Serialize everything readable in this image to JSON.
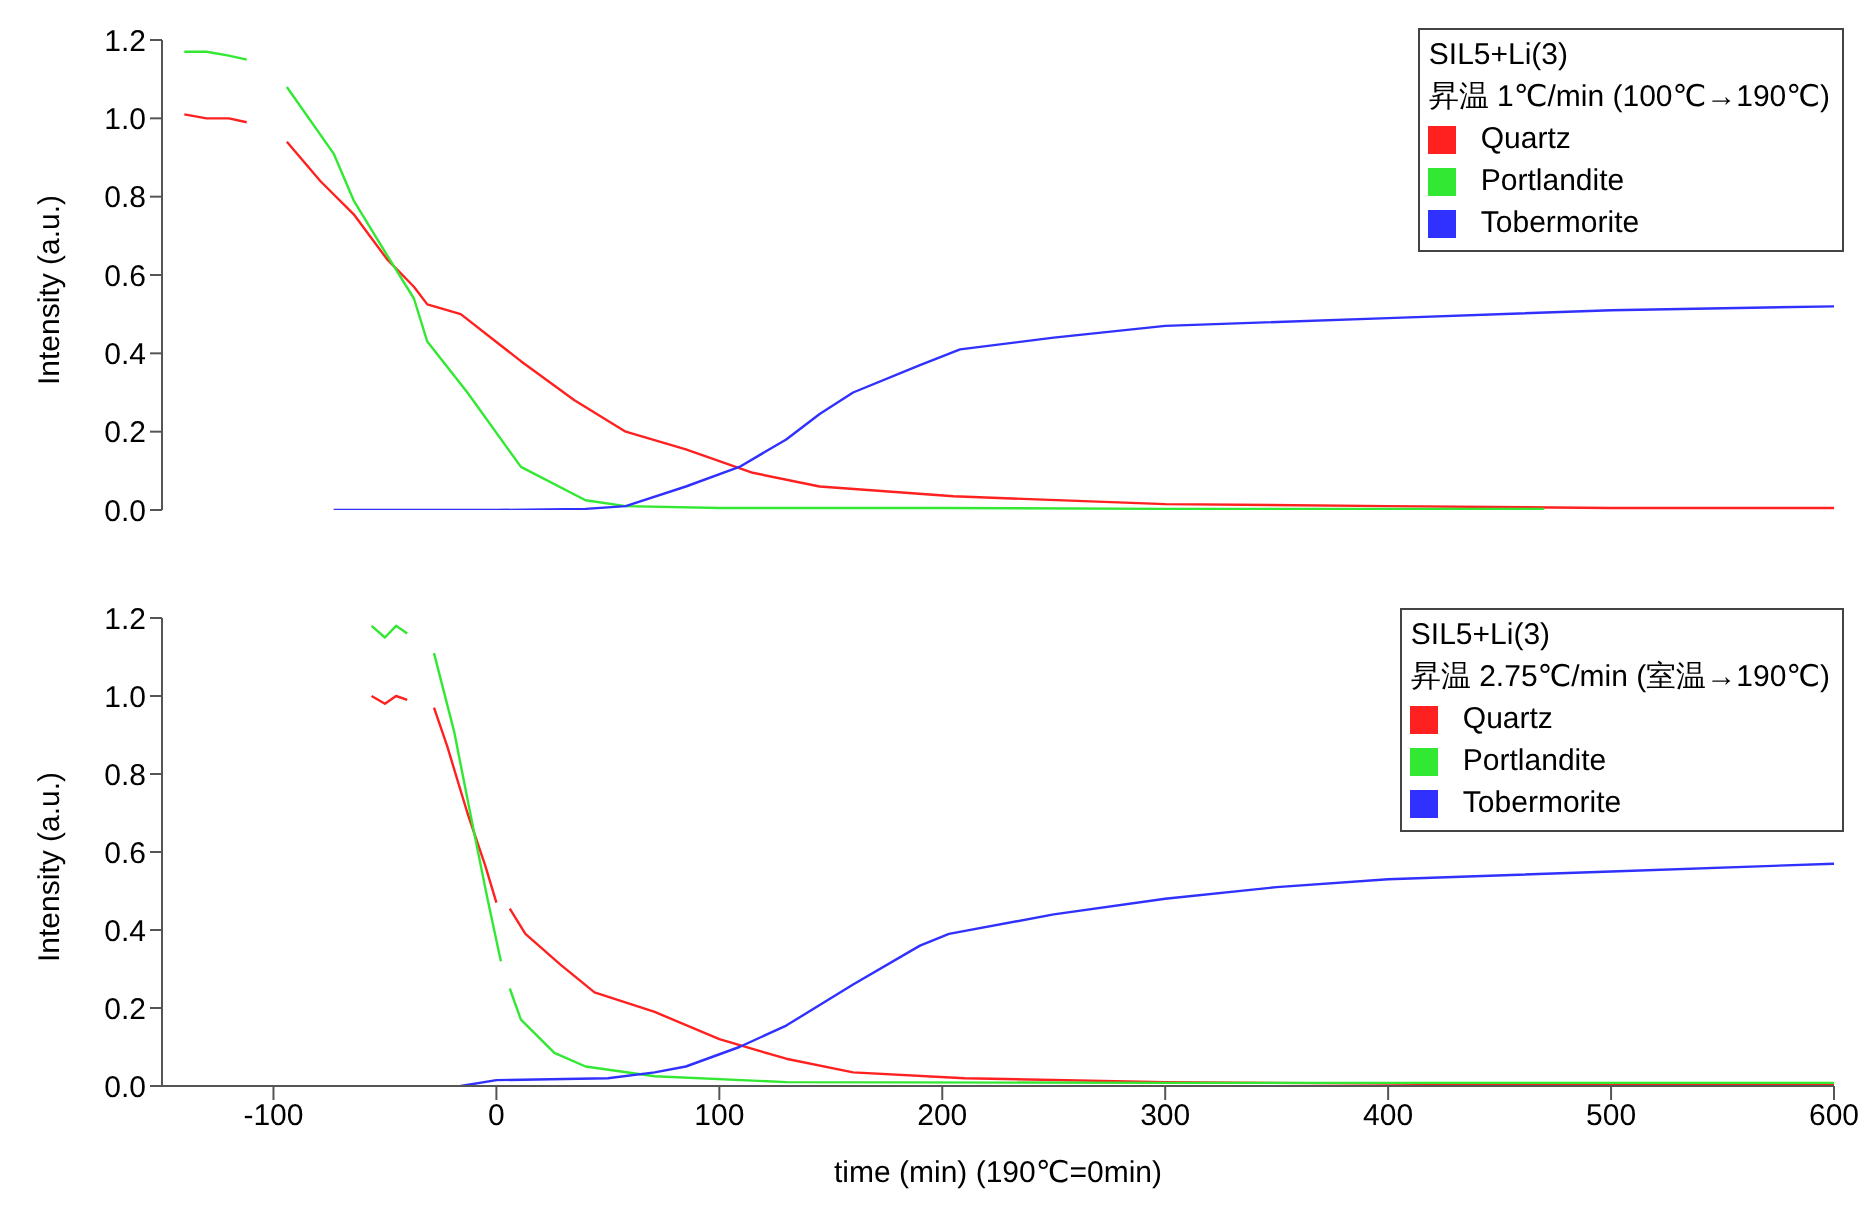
{
  "chart_data": [
    {
      "type": "line",
      "ylabel": "Intensity (a.u.)",
      "legend_title": "SIL5+Li(3)\n昇温 1℃/min (100℃→190℃)",
      "legend": "top right",
      "tick_labels": "y",
      "line_style": "solid",
      "xlim": [
        -150,
        600
      ],
      "xticks": [
        -100,
        0,
        100,
        200,
        300,
        400,
        500,
        600
      ],
      "ylim": [
        0,
        1.2
      ],
      "yticks": [
        {
          "value": 0,
          "label": "0.0"
        },
        {
          "value": 0.2,
          "label": "0.2"
        },
        {
          "value": 0.4,
          "label": "0.4"
        },
        {
          "value": 0.6,
          "label": "0.6"
        },
        {
          "value": 0.8,
          "label": "0.8"
        },
        {
          "value": 1,
          "label": "1.0"
        },
        {
          "value": 1.2,
          "label": "1.2"
        }
      ],
      "series": [
        {
          "name": "Quartz",
          "color": "#ff2020",
          "x": [
            -140,
            -130,
            -120,
            -112,
            -103,
            -94,
            -79,
            -64,
            -49,
            -37,
            -31,
            -16,
            11,
            35,
            58,
            85,
            115,
            145,
            205,
            300,
            400,
            500,
            600
          ],
          "values": [
            1.01,
            1.0,
            1.0,
            0.99,
            null,
            0.94,
            0.84,
            0.755,
            0.64,
            0.57,
            0.525,
            0.5,
            0.38,
            0.28,
            0.2,
            0.155,
            0.095,
            0.06,
            0.035,
            0.015,
            0.01,
            0.005,
            0.005
          ]
        },
        {
          "name": "Portlandite",
          "color": "#33e833",
          "x": [
            -140,
            -130,
            -120,
            -112,
            -103,
            -94,
            -73,
            -64,
            -49,
            -37,
            -31,
            -13,
            11,
            40,
            58,
            100,
            200,
            300,
            400,
            470
          ],
          "values": [
            1.17,
            1.17,
            1.16,
            1.15,
            null,
            1.08,
            0.91,
            0.79,
            0.65,
            0.54,
            0.43,
            0.3,
            0.11,
            0.025,
            0.01,
            0.005,
            0.005,
            0.003,
            0.003,
            0.003
          ]
        },
        {
          "name": "Tobermorite",
          "color": "#3030ff",
          "x": [
            -73,
            0,
            40,
            58,
            85,
            109,
            130,
            145,
            160,
            190,
            208,
            250,
            300,
            400,
            500,
            600
          ],
          "values": [
            0,
            0,
            0.003,
            0.01,
            0.06,
            0.11,
            0.18,
            0.245,
            0.3,
            0.37,
            0.41,
            0.44,
            0.47,
            0.49,
            0.51,
            0.52
          ]
        }
      ]
    },
    {
      "type": "line",
      "xlabel": "time (min) (190℃=0min)",
      "ylabel": "Intensity (a.u.)",
      "legend_title": "SIL5+Li(3)\n昇温 2.75℃/min (室温→190℃)",
      "legend": "top right",
      "line_style": "solid",
      "xlim": [
        -150,
        600
      ],
      "xticks": [
        -100,
        0,
        100,
        200,
        300,
        400,
        500,
        600
      ],
      "ylim": [
        0,
        1.2
      ],
      "yticks": [
        {
          "value": 0,
          "label": "0.0"
        },
        {
          "value": 0.2,
          "label": "0.2"
        },
        {
          "value": 0.4,
          "label": "0.4"
        },
        {
          "value": 0.6,
          "label": "0.6"
        },
        {
          "value": 0.8,
          "label": "0.8"
        },
        {
          "value": 1,
          "label": "1.0"
        },
        {
          "value": 1.2,
          "label": "1.2"
        }
      ],
      "series": [
        {
          "name": "Quartz",
          "color": "#ff2020",
          "x": [
            -56,
            -50,
            -45,
            -40,
            -34,
            -28,
            -22,
            -13,
            -5,
            0,
            3,
            6,
            13,
            29,
            44,
            71,
            100,
            130,
            160,
            210,
            300,
            400,
            500,
            600
          ],
          "values": [
            1.0,
            0.98,
            1.0,
            0.99,
            null,
            0.97,
            0.87,
            0.7,
            0.565,
            0.47,
            null,
            0.455,
            0.39,
            0.31,
            0.24,
            0.19,
            0.12,
            0.07,
            0.035,
            0.02,
            0.01,
            0.006,
            0.002,
            0.002
          ]
        },
        {
          "name": "Portlandite",
          "color": "#33e833",
          "x": [
            -56,
            -50,
            -45,
            -40,
            -34,
            -28,
            -19,
            -10,
            -4,
            2,
            4,
            6,
            11,
            26,
            40,
            71,
            130,
            300,
            450,
            600
          ],
          "values": [
            1.18,
            1.15,
            1.18,
            1.16,
            null,
            1.11,
            0.91,
            0.65,
            0.48,
            0.32,
            null,
            0.25,
            0.17,
            0.085,
            0.05,
            0.025,
            0.01,
            0.008,
            0.008,
            0.008
          ]
        },
        {
          "name": "Tobermorite",
          "color": "#3030ff",
          "x": [
            -16,
            0,
            50,
            71,
            85,
            109,
            130,
            160,
            190,
            203,
            250,
            300,
            350,
            400,
            500,
            600
          ],
          "values": [
            0,
            0.015,
            0.02,
            0.035,
            0.05,
            0.1,
            0.155,
            0.26,
            0.36,
            0.39,
            0.44,
            0.48,
            0.51,
            0.53,
            0.55,
            0.57
          ]
        }
      ]
    }
  ]
}
